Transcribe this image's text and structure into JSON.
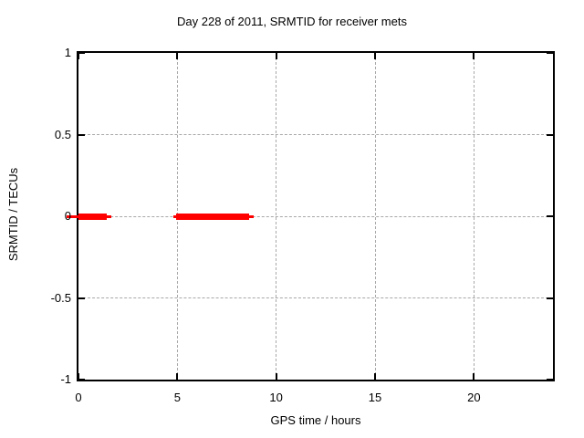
{
  "title": "Day 228 of 2011, SRMTID for receiver mets",
  "chart_data": {
    "type": "line",
    "title": "Day 228 of 2011, SRMTID for receiver mets",
    "xlabel": "GPS time / hours",
    "ylabel": "SRMTID / TECUs",
    "xlim": [
      0,
      24
    ],
    "ylim": [
      -1,
      1
    ],
    "grid": true,
    "legend": "none",
    "xticks": [
      {
        "value": 0,
        "label": "0"
      },
      {
        "value": 5,
        "label": "5"
      },
      {
        "value": 10,
        "label": "10"
      },
      {
        "value": 15,
        "label": "15"
      },
      {
        "value": 20,
        "label": "20"
      }
    ],
    "yticks": [
      {
        "value": -1,
        "label": "-1"
      },
      {
        "value": -0.5,
        "label": "-0.5"
      },
      {
        "value": 0,
        "label": "0"
      },
      {
        "value": 0.5,
        "label": "0.5"
      },
      {
        "value": 1,
        "label": "1"
      }
    ],
    "series": [
      {
        "name": "SRMTID",
        "color": "#ff0000",
        "segments": [
          {
            "y": 0,
            "x_thick": [
              0.0,
              1.45
            ],
            "x_thin": [
              -0.6,
              1.65
            ]
          },
          {
            "y": 0,
            "x_thick": [
              4.95,
              8.65
            ],
            "x_thin": [
              4.8,
              8.85
            ]
          }
        ]
      }
    ]
  },
  "colors": {
    "background": "#ffffff",
    "text": "#000000",
    "border": "#000000",
    "grid": "#a8a8a8",
    "series": "#ff0000"
  }
}
